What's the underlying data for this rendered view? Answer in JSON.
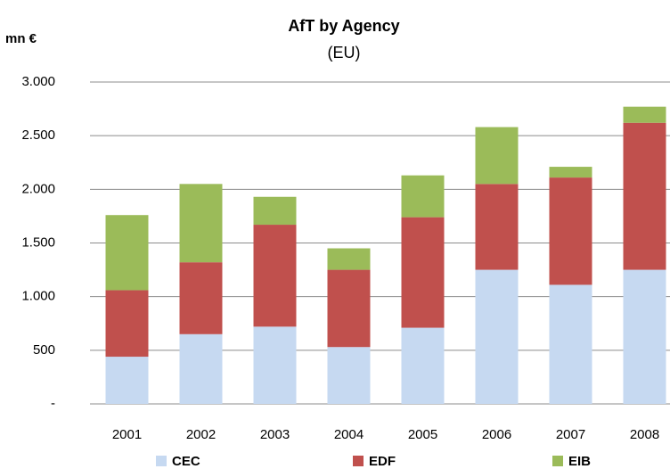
{
  "chart_data": {
    "type": "stacked_bar",
    "title": "AfT by Agency",
    "subtitle": "(EU)",
    "y_label": "mn €",
    "categories": [
      "2001",
      "2002",
      "2003",
      "2004",
      "2005",
      "2006",
      "2007",
      "2008"
    ],
    "series": [
      {
        "name": "CEC",
        "color": "#c6d9f1",
        "values": [
          440,
          650,
          720,
          530,
          710,
          1250,
          1110,
          1250
        ]
      },
      {
        "name": "EDF",
        "color": "#c0504d",
        "values": [
          620,
          670,
          950,
          720,
          1030,
          800,
          1000,
          1370
        ]
      },
      {
        "name": "EIB",
        "color": "#9bbb59",
        "values": [
          700,
          730,
          260,
          200,
          390,
          530,
          100,
          150
        ]
      }
    ],
    "ylim": [
      0,
      3000
    ],
    "yticks": [
      {
        "value": 0,
        "label": "-"
      },
      500,
      {
        "value": 1000,
        "label": "1.000"
      },
      {
        "value": 1500,
        "label": "1.500"
      },
      {
        "value": 2000,
        "label": "2.000"
      },
      {
        "value": 2500,
        "label": "2.500"
      },
      {
        "value": 3000,
        "label": "3.000"
      }
    ],
    "grid": true,
    "legend": "bottom"
  }
}
